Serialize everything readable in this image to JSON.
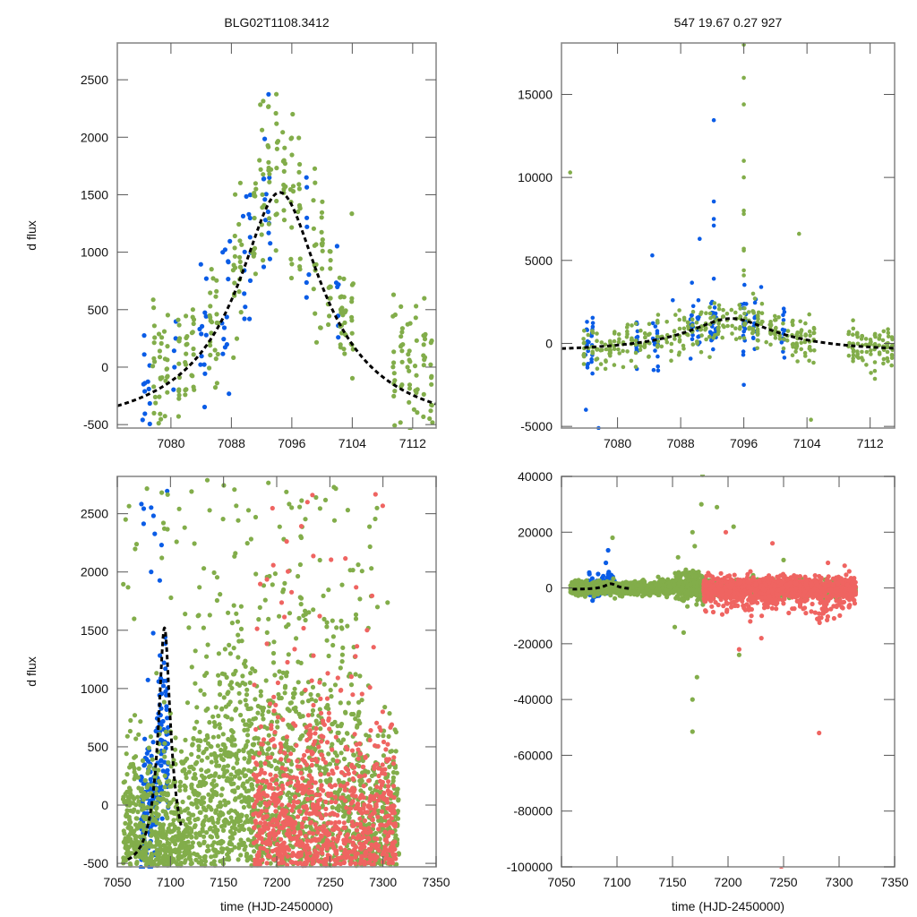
{
  "figure": {
    "title_left": "BLG02T1108.3412",
    "title_right": "547  19.67  0.27  927",
    "ylabel": "d flux",
    "xlabel": "time (HJD-2450000)"
  },
  "colors": {
    "blue": "#0a5ce6",
    "green": "#82ad4a",
    "red": "#ef6461",
    "model": "#000000",
    "frame": "#8a8a8a"
  },
  "model": {
    "t0": 7094.4,
    "tE": 19.67,
    "u0": 0.27,
    "peak_dflux": 2050,
    "baseline_dflux": -530
  },
  "chart_data": [
    {
      "id": "top-left",
      "type": "scatter",
      "title": "BLG02T1108.3412",
      "xlabel": "",
      "ylabel": "d flux",
      "xlim": [
        7072.9,
        7115.1
      ],
      "ylim": [
        -530,
        2820
      ],
      "xticks": [
        7080,
        7088,
        7096,
        7104,
        7112
      ],
      "yticks": [
        -500,
        0,
        500,
        1000,
        1500,
        2000,
        2500
      ],
      "model_baseline": -530,
      "model_peak": 2050,
      "series": [
        {
          "name": "blue",
          "color": "#0a5ce6",
          "count": 90,
          "time_clusters": [
            7076.5,
            7077.1,
            7080.5,
            7084.0,
            7084.6,
            7087.0,
            7087.6,
            7089.8,
            7090.4,
            7092.4,
            7093.0,
            7098.0,
            7102.0
          ],
          "note": "vertical columns of points around model, spread ~±400"
        },
        {
          "name": "green",
          "color": "#82ad4a",
          "count": 340,
          "time_clusters": [
            7077.8,
            7078.6,
            7079.4,
            7081.0,
            7082.0,
            7083.0,
            7085.2,
            7086.0,
            7088.4,
            7089.2,
            7091.0,
            7092.0,
            7093.0,
            7094.0,
            7095.0,
            7096.0,
            7097.0,
            7099.0,
            7100.0,
            7101.0,
            7102.5,
            7103.0,
            7104.0,
            7109.5,
            7110.5,
            7111.5,
            7112.5,
            7113.5,
            7114.5
          ],
          "note": "follows the peak up to ~2800 near 7092-7094"
        }
      ]
    },
    {
      "id": "top-right",
      "type": "scatter",
      "title": "547  19.67  0.27  927",
      "xlabel": "",
      "ylabel": "",
      "xlim": [
        7072.9,
        7115.1
      ],
      "ylim": [
        -5100,
        18100
      ],
      "xticks": [
        7080,
        7088,
        7096,
        7104,
        7112
      ],
      "yticks": [
        -5000,
        0,
        5000,
        10000,
        15000
      ],
      "model_baseline": -500,
      "model_peak": 2000,
      "series": [
        {
          "name": "blue",
          "color": "#0a5ce6",
          "count": 150,
          "outliers": [
            [
              7092.2,
              13450
            ],
            [
              7092.2,
              8550
            ],
            [
              7092.2,
              7500
            ],
            [
              7092.2,
              7100
            ],
            [
              7090.4,
              6300
            ],
            [
              7084.4,
              5300
            ],
            [
              7092.2,
              3900
            ],
            [
              7098.2,
              3400
            ],
            [
              7087.0,
              2600
            ],
            [
              7096.0,
              -2500
            ],
            [
              7076.0,
              -4000
            ],
            [
              7077.6,
              -5100
            ]
          ]
        },
        {
          "name": "green",
          "color": "#82ad4a",
          "count": 420,
          "outliers": [
            [
              7074.0,
              10300
            ],
            [
              7096.0,
              18000
            ],
            [
              7096.0,
              16000
            ],
            [
              7096.0,
              14400
            ],
            [
              7096.0,
              11000
            ],
            [
              7096.0,
              10000
            ],
            [
              7096.0,
              8000
            ],
            [
              7096.0,
              7800
            ],
            [
              7096.0,
              5700
            ],
            [
              7096.0,
              5600
            ],
            [
              7096.0,
              4400
            ],
            [
              7096.0,
              4100
            ],
            [
              7103.0,
              6600
            ],
            [
              7097.4,
              2700
            ],
            [
              7104.5,
              -4600
            ]
          ]
        }
      ]
    },
    {
      "id": "bottom-left",
      "type": "scatter",
      "title": "",
      "xlabel": "time (HJD-2450000)",
      "ylabel": "d flux",
      "xlim": [
        7050,
        7350
      ],
      "ylim": [
        -530,
        2820
      ],
      "xticks": [
        7050,
        7100,
        7150,
        7200,
        7250,
        7300,
        7350
      ],
      "yticks": [
        -500,
        0,
        500,
        1000,
        1500,
        2000,
        2500
      ],
      "model_baseline": -530,
      "model_peak": 2050,
      "series": [
        {
          "name": "blue",
          "color": "#0a5ce6",
          "time_range": [
            7070,
            7100
          ],
          "count": 230
        },
        {
          "name": "green",
          "color": "#82ad4a",
          "time_range": [
            7055,
            7315
          ],
          "count": 2200
        },
        {
          "name": "red",
          "color": "#ef6461",
          "time_range": [
            7178,
            7312
          ],
          "count": 900
        }
      ]
    },
    {
      "id": "bottom-right",
      "type": "scatter",
      "title": "",
      "xlabel": "time (HJD-2450000)",
      "ylabel": "",
      "xlim": [
        7050,
        7350
      ],
      "ylim": [
        -100000,
        40000
      ],
      "xticks": [
        7050,
        7100,
        7150,
        7200,
        7250,
        7300,
        7350
      ],
      "yticks": [
        -100000,
        -80000,
        -60000,
        -40000,
        -20000,
        0,
        20000,
        40000
      ],
      "model_baseline": -500,
      "model_peak": 2000,
      "series": [
        {
          "name": "blue",
          "color": "#0a5ce6",
          "time_range": [
            7070,
            7100
          ],
          "count": 200,
          "outliers": [
            [
              7092,
              13500
            ],
            [
              7090,
              9000
            ],
            [
              7075,
              5500
            ],
            [
              7083,
              5000
            ],
            [
              7078,
              -4500
            ],
            [
              7080,
              -3000
            ]
          ]
        },
        {
          "name": "green",
          "color": "#82ad4a",
          "time_range": [
            7058,
            7315
          ],
          "count": 2400,
          "outliers": [
            [
              7177,
              40500
            ],
            [
              7190,
              29000
            ],
            [
              7168,
              20000
            ],
            [
              7096,
              18000
            ],
            [
              7205,
              22000
            ],
            [
              7170,
              15000
            ],
            [
              7168,
              -40000
            ],
            [
              7168,
              -51500
            ],
            [
              7172,
              -32000
            ],
            [
              7210,
              -24000
            ],
            [
              7152,
              -14000
            ],
            [
              7160,
              -16000
            ],
            [
              7176,
              30000
            ],
            [
              7155,
              11000
            ],
            [
              7250,
              10000
            ],
            [
              7300,
              -4000
            ]
          ]
        },
        {
          "name": "red",
          "color": "#ef6461",
          "time_range": [
            7178,
            7315
          ],
          "count": 1300,
          "outliers": [
            [
              7198,
              20000
            ],
            [
              7240,
              16000
            ],
            [
              7210,
              -22000
            ],
            [
              7230,
              -18000
            ],
            [
              7282,
              -52000
            ],
            [
              7248,
              -101000
            ],
            [
              7290,
              9000
            ],
            [
              7305,
              8000
            ],
            [
              7265,
              -6000
            ],
            [
              7220,
              -12000
            ]
          ]
        }
      ]
    }
  ]
}
